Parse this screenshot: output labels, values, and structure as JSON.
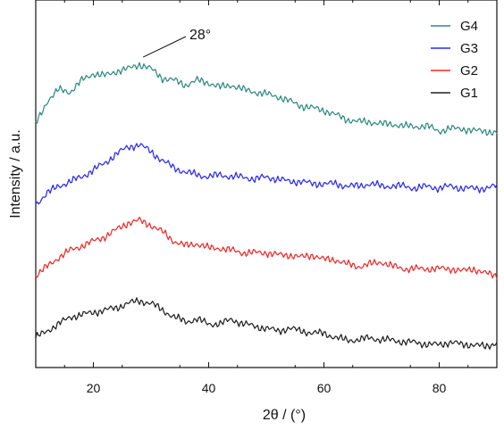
{
  "chart_data": {
    "type": "line",
    "title": "",
    "xlabel": "2θ / (°)",
    "ylabel": "Intensity / a.u.",
    "xlim": [
      10,
      90
    ],
    "xticks": [
      20,
      40,
      60,
      80
    ],
    "yticks_shown": false,
    "grid": false,
    "legend_position": "top-right",
    "annotation": {
      "text": "28°",
      "x": 28,
      "series": "G4"
    },
    "series": [
      {
        "name": "G4",
        "color": "#2f8a7f",
        "x": [
          10,
          12,
          14,
          16,
          18,
          20,
          22,
          24,
          26,
          28,
          30,
          32,
          34,
          36,
          38,
          40,
          42,
          44,
          46,
          48,
          50,
          52,
          54,
          56,
          58,
          60,
          62,
          64,
          66,
          68,
          70,
          72,
          74,
          76,
          78,
          80,
          82,
          84,
          86,
          88,
          90
        ],
        "values": [
          10.6,
          11.6,
          12.1,
          12.0,
          12.5,
          12.8,
          12.7,
          12.9,
          13.0,
          13.2,
          13.0,
          12.6,
          12.5,
          12.3,
          12.5,
          12.4,
          12.2,
          12.3,
          12.1,
          12.0,
          11.9,
          11.8,
          11.6,
          11.4,
          11.3,
          11.2,
          11.0,
          10.8,
          10.7,
          10.7,
          10.6,
          10.6,
          10.5,
          10.5,
          10.5,
          10.3,
          10.4,
          10.4,
          10.3,
          10.3,
          10.2
        ]
      },
      {
        "name": "G3",
        "color": "#2a2af0",
        "x": [
          10,
          12,
          14,
          16,
          18,
          20,
          22,
          24,
          26,
          28,
          30,
          32,
          34,
          36,
          38,
          40,
          42,
          44,
          46,
          48,
          50,
          52,
          54,
          56,
          58,
          60,
          62,
          64,
          66,
          68,
          70,
          72,
          74,
          76,
          78,
          80,
          82,
          84,
          86,
          88,
          90
        ],
        "values": [
          7.1,
          7.6,
          7.9,
          8.1,
          8.3,
          8.6,
          8.9,
          9.3,
          9.6,
          9.7,
          9.4,
          9.0,
          8.7,
          8.5,
          8.4,
          8.3,
          8.4,
          8.3,
          8.3,
          8.2,
          8.3,
          8.2,
          8.1,
          8.1,
          8.0,
          8.0,
          8.0,
          7.9,
          7.9,
          8.0,
          7.9,
          7.9,
          7.9,
          7.8,
          7.9,
          7.8,
          7.9,
          7.8,
          7.8,
          7.8,
          7.9
        ]
      },
      {
        "name": "G2",
        "color": "#ee2a2a",
        "x": [
          10,
          12,
          14,
          16,
          18,
          20,
          22,
          24,
          26,
          28,
          30,
          32,
          34,
          36,
          38,
          40,
          42,
          44,
          46,
          48,
          50,
          52,
          54,
          56,
          58,
          60,
          62,
          64,
          66,
          68,
          70,
          72,
          74,
          76,
          78,
          80,
          82,
          84,
          86,
          88,
          90
        ],
        "values": [
          4.0,
          4.4,
          4.8,
          5.1,
          5.3,
          5.5,
          5.7,
          6.0,
          6.3,
          6.4,
          6.2,
          5.9,
          5.5,
          5.3,
          5.4,
          5.2,
          5.2,
          5.1,
          5.0,
          5.0,
          5.0,
          4.9,
          4.9,
          4.8,
          4.9,
          4.7,
          4.7,
          4.5,
          4.4,
          4.5,
          4.6,
          4.4,
          4.3,
          4.3,
          4.3,
          4.3,
          4.3,
          4.2,
          4.3,
          4.1,
          4.0
        ]
      },
      {
        "name": "G1",
        "color": "#222222",
        "x": [
          10,
          12,
          14,
          16,
          18,
          20,
          22,
          24,
          26,
          28,
          30,
          32,
          34,
          36,
          38,
          40,
          42,
          44,
          46,
          48,
          50,
          52,
          54,
          56,
          58,
          60,
          62,
          64,
          66,
          68,
          70,
          72,
          74,
          76,
          78,
          80,
          82,
          84,
          86,
          88,
          90
        ],
        "values": [
          1.3,
          1.6,
          1.9,
          2.2,
          2.3,
          2.4,
          2.5,
          2.6,
          2.8,
          2.9,
          2.8,
          2.5,
          2.2,
          2.0,
          2.1,
          1.9,
          1.9,
          2.1,
          1.9,
          1.8,
          1.7,
          1.6,
          1.7,
          1.6,
          1.5,
          1.5,
          1.3,
          1.2,
          1.2,
          1.3,
          1.2,
          1.2,
          1.1,
          1.1,
          1.0,
          1.0,
          1.1,
          1.0,
          1.0,
          0.9,
          1.1
        ]
      }
    ]
  },
  "legend": {
    "order": [
      "G4",
      "G3",
      "G2",
      "G1"
    ]
  }
}
